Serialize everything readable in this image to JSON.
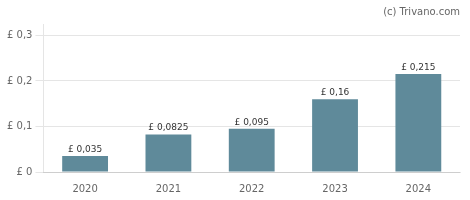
{
  "chart_data": {
    "type": "bar",
    "annotation": "(c) Trivano.com",
    "categories": [
      "2020",
      "2021",
      "2022",
      "2023",
      "2024"
    ],
    "values": [
      0.035,
      0.0825,
      0.095,
      0.16,
      0.215
    ],
    "value_labels": [
      "£ 0,035",
      "£ 0,0825",
      "£ 0,095",
      "£ 0,16",
      "£ 0,215"
    ],
    "data_labels": true,
    "color": "#5f8a9a",
    "ylim": [
      0,
      0.325
    ],
    "yticks": [
      {
        "value": 0.0,
        "label": "£ 0"
      },
      {
        "value": 0.1,
        "label": "£ 0,1"
      },
      {
        "value": 0.2,
        "label": "£ 0,2"
      },
      {
        "value": 0.3,
        "label": "£ 0,3"
      }
    ],
    "grid": true
  }
}
